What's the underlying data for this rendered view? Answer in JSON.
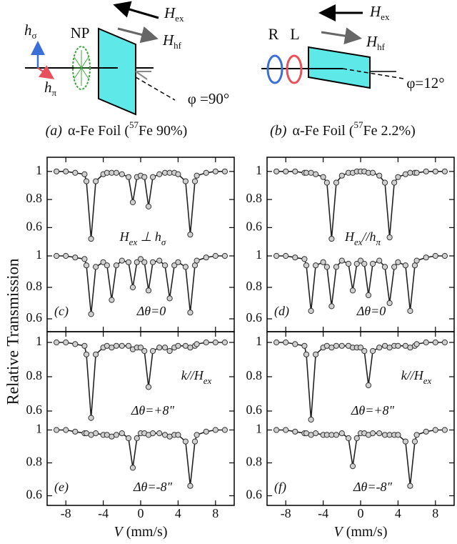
{
  "diagrams": [
    {
      "h_sigma": [
        "h",
        "σ"
      ],
      "np": "NP",
      "h_pi": [
        "h",
        "π"
      ],
      "h_ex": [
        "H",
        "ex"
      ],
      "h_hf": [
        "H",
        "hf"
      ],
      "phi": "φ =90°",
      "caption": [
        "(a)",
        "α-Fe Foil (",
        "57",
        "Fe 90%)"
      ]
    },
    {
      "r": "R",
      "l": "L",
      "h_ex": [
        "H",
        "ex"
      ],
      "h_hf": [
        "H",
        "hf"
      ],
      "phi": "φ=12°",
      "caption": [
        "(b)",
        "α-Fe Foil (",
        "57",
        "Fe 2.2%)"
      ]
    }
  ],
  "y_label": "Relative Transmission",
  "chart_data": [
    {
      "type": "line",
      "color": "#222222",
      "marker_fill": "#d0d0d0",
      "xlim": [
        -10,
        10
      ],
      "ylim": [
        0.5,
        1.05
      ],
      "yticks": [
        0.6,
        0.8,
        1
      ],
      "x": [
        -9,
        -8,
        -7,
        -6,
        -5.8,
        -5.3,
        -4.8,
        -4,
        -3.6,
        -3.1,
        -2.6,
        -2,
        -1.3,
        -0.84,
        -0.4,
        0,
        0.4,
        0.84,
        1.3,
        2,
        2.6,
        3.1,
        3.6,
        4,
        4.8,
        5.3,
        5.8,
        6,
        7,
        8,
        9
      ],
      "values": [
        1,
        1,
        0.99,
        0.98,
        0.93,
        0.52,
        0.93,
        0.98,
        0.99,
        0.99,
        0.99,
        0.98,
        0.96,
        0.78,
        0.96,
        0.97,
        0.96,
        0.75,
        0.96,
        0.98,
        0.99,
        0.99,
        0.99,
        0.98,
        0.93,
        0.55,
        0.93,
        0.97,
        0.99,
        1,
        1
      ],
      "annotations": [
        [
          "H",
          {
            "sub": "ex"
          },
          " ⊥ h",
          {
            "sub": "σ"
          }
        ]
      ]
    },
    {
      "type": "line",
      "color": "#222222",
      "marker_fill": "#d0d0d0",
      "xlim": [
        -10,
        10
      ],
      "ylim": [
        0.55,
        1.05
      ],
      "yticks": [
        0.6,
        0.8,
        1
      ],
      "xticks": [
        -8,
        -4,
        0,
        4,
        8
      ],
      "x": [
        -9,
        -8,
        -7,
        -6,
        -5.8,
        -5.3,
        -4.8,
        -4,
        -3.6,
        -3.1,
        -2.6,
        -2,
        -1.3,
        -0.84,
        -0.4,
        0,
        0.4,
        0.84,
        1.3,
        2,
        2.6,
        3.1,
        3.6,
        4,
        4.8,
        5.3,
        5.8,
        6,
        7,
        8,
        9
      ],
      "values": [
        1,
        1,
        0.99,
        0.98,
        0.94,
        0.63,
        0.93,
        0.96,
        0.94,
        0.72,
        0.94,
        0.97,
        0.96,
        0.8,
        0.96,
        0.98,
        0.96,
        0.78,
        0.96,
        0.97,
        0.94,
        0.73,
        0.94,
        0.96,
        0.93,
        0.64,
        0.94,
        0.97,
        0.99,
        1,
        1
      ],
      "annotations": [
        [
          "Δθ=0"
        ]
      ],
      "panel": "(c)"
    },
    {
      "type": "line",
      "color": "#222222",
      "marker_fill": "#d0d0d0",
      "xlim": [
        -10,
        10
      ],
      "ylim": [
        0.5,
        1.05
      ],
      "yticks": [
        0.6,
        0.8,
        1
      ],
      "x": [
        -9,
        -8,
        -7,
        -6,
        -5.8,
        -5.3,
        -4.8,
        -4,
        -3.6,
        -3.1,
        -2.6,
        -2,
        -1.3,
        -0.84,
        -0.4,
        0,
        0.4,
        0.84,
        1.3,
        2,
        2.6,
        3.1,
        3.6,
        4,
        4.8,
        5.3,
        5.8,
        6,
        7,
        8,
        9
      ],
      "values": [
        1,
        1,
        1,
        0.99,
        0.99,
        0.99,
        0.98,
        0.96,
        0.92,
        0.52,
        0.92,
        0.97,
        0.99,
        0.99,
        1,
        1,
        1,
        0.99,
        0.99,
        0.97,
        0.92,
        0.53,
        0.92,
        0.96,
        0.98,
        0.99,
        0.99,
        0.99,
        1,
        1,
        1
      ],
      "annotations": [
        [
          "H",
          {
            "sub": "ex"
          },
          "//h",
          {
            "sub": "π"
          }
        ]
      ]
    },
    {
      "type": "line",
      "color": "#222222",
      "marker_fill": "#d0d0d0",
      "xlim": [
        -10,
        10
      ],
      "ylim": [
        0.55,
        1.05
      ],
      "yticks": [
        0.6,
        0.8,
        1
      ],
      "xticks": [
        -8,
        -4,
        0,
        4,
        8
      ],
      "x": [
        -9,
        -8,
        -7,
        -6,
        -5.8,
        -5.3,
        -4.8,
        -4,
        -3.6,
        -3.1,
        -2.6,
        -2,
        -1.3,
        -0.84,
        -0.4,
        0,
        0.4,
        0.84,
        1.3,
        2,
        2.6,
        3.1,
        3.6,
        4,
        4.8,
        5.3,
        5.8,
        6,
        7,
        8,
        9
      ],
      "values": [
        1,
        1,
        0.99,
        0.98,
        0.94,
        0.65,
        0.94,
        0.96,
        0.93,
        0.68,
        0.93,
        0.97,
        0.95,
        0.78,
        0.95,
        0.97,
        0.95,
        0.75,
        0.95,
        0.97,
        0.93,
        0.7,
        0.93,
        0.96,
        0.94,
        0.65,
        0.94,
        0.97,
        0.99,
        1,
        1
      ],
      "annotations": [
        [
          "Δθ=0"
        ]
      ],
      "panel": "(d)"
    },
    {
      "type": "line",
      "color": "#222222",
      "marker_fill": "#d0d0d0",
      "xlim": [
        -10,
        10
      ],
      "ylim": [
        0.5,
        1.05
      ],
      "yticks": [
        0.6,
        0.8,
        1
      ],
      "x": [
        -9,
        -8,
        -7,
        -6,
        -5.8,
        -5.3,
        -4.8,
        -4,
        -3.6,
        -3.1,
        -2.6,
        -2,
        -1.3,
        -0.84,
        -0.4,
        0,
        0.4,
        0.84,
        1.3,
        2,
        2.6,
        3.1,
        3.6,
        4,
        4.8,
        5.3,
        5.8,
        6,
        7,
        8,
        9
      ],
      "values": [
        1,
        1,
        0.99,
        0.98,
        0.93,
        0.56,
        0.93,
        0.97,
        0.98,
        0.97,
        0.98,
        0.98,
        0.98,
        0.96,
        0.97,
        0.97,
        0.95,
        0.74,
        0.95,
        0.97,
        0.97,
        0.95,
        0.97,
        0.98,
        0.98,
        0.97,
        0.98,
        0.99,
        1,
        1,
        1
      ],
      "annotations": [
        [
          "k//H",
          {
            "sub": "ex"
          }
        ],
        [
          "Δθ=+8\""
        ]
      ]
    },
    {
      "type": "line",
      "color": "#222222",
      "marker_fill": "#d0d0d0",
      "xlim": [
        -10,
        10
      ],
      "ylim": [
        0.55,
        1.05
      ],
      "yticks": [
        0.6,
        0.8,
        1
      ],
      "xticks": [
        -8,
        -4,
        0,
        4,
        8
      ],
      "x": [
        -9,
        -8,
        -7,
        -6,
        -5.8,
        -5.3,
        -4.8,
        -4,
        -3.6,
        -3.1,
        -2.6,
        -2,
        -1.3,
        -0.84,
        -0.4,
        0,
        0.4,
        0.84,
        1.3,
        2,
        2.6,
        3.1,
        3.6,
        4,
        4.8,
        5.3,
        5.8,
        6,
        7,
        8,
        9
      ],
      "values": [
        1,
        1,
        0.99,
        0.98,
        0.98,
        0.97,
        0.98,
        0.97,
        0.97,
        0.96,
        0.97,
        0.98,
        0.95,
        0.77,
        0.95,
        0.98,
        0.98,
        0.97,
        0.98,
        0.98,
        0.97,
        0.96,
        0.97,
        0.97,
        0.93,
        0.66,
        0.93,
        0.97,
        0.99,
        1,
        1
      ],
      "annotations": [
        [
          "Δθ=-8\""
        ]
      ],
      "panel": "(e)",
      "x_label": [
        "V",
        " (mm/s)"
      ]
    },
    {
      "type": "line",
      "color": "#222222",
      "marker_fill": "#d0d0d0",
      "xlim": [
        -10,
        10
      ],
      "ylim": [
        0.5,
        1.05
      ],
      "yticks": [
        0.6,
        0.8,
        1
      ],
      "x": [
        -9,
        -8,
        -7,
        -6,
        -5.8,
        -5.3,
        -4.8,
        -4,
        -3.6,
        -3.1,
        -2.6,
        -2,
        -1.3,
        -0.84,
        -0.4,
        0,
        0.4,
        0.84,
        1.3,
        2,
        2.6,
        3.1,
        3.6,
        4,
        4.8,
        5.3,
        5.8,
        6,
        7,
        8,
        9
      ],
      "values": [
        1,
        1,
        0.99,
        0.98,
        0.93,
        0.55,
        0.93,
        0.97,
        0.98,
        0.97,
        0.98,
        0.98,
        0.98,
        0.97,
        0.97,
        0.97,
        0.95,
        0.75,
        0.95,
        0.97,
        0.98,
        0.97,
        0.98,
        0.98,
        0.98,
        0.97,
        0.98,
        0.99,
        1,
        1,
        1
      ],
      "annotations": [
        [
          "k//H",
          {
            "sub": "ex"
          }
        ],
        [
          "Δθ=+8\""
        ]
      ]
    },
    {
      "type": "line",
      "color": "#222222",
      "marker_fill": "#d0d0d0",
      "xlim": [
        -10,
        10
      ],
      "ylim": [
        0.55,
        1.05
      ],
      "yticks": [
        0.6,
        0.8,
        1
      ],
      "xticks": [
        -8,
        -4,
        0,
        4,
        8
      ],
      "x": [
        -9,
        -8,
        -7,
        -6,
        -5.8,
        -5.3,
        -4.8,
        -4,
        -3.6,
        -3.1,
        -2.6,
        -2,
        -1.3,
        -0.84,
        -0.4,
        0,
        0.4,
        0.84,
        1.3,
        2,
        2.6,
        3.1,
        3.6,
        4,
        4.8,
        5.3,
        5.8,
        6,
        7,
        8,
        9
      ],
      "values": [
        1,
        1,
        0.99,
        0.98,
        0.98,
        0.97,
        0.98,
        0.97,
        0.97,
        0.97,
        0.97,
        0.98,
        0.95,
        0.78,
        0.95,
        0.98,
        0.98,
        0.97,
        0.98,
        0.98,
        0.97,
        0.97,
        0.97,
        0.97,
        0.93,
        0.66,
        0.93,
        0.97,
        0.99,
        1,
        1
      ],
      "annotations": [
        [
          "Δθ=-8\""
        ]
      ],
      "panel": "(f)",
      "x_label": [
        "V",
        " (mm/s)"
      ]
    }
  ]
}
